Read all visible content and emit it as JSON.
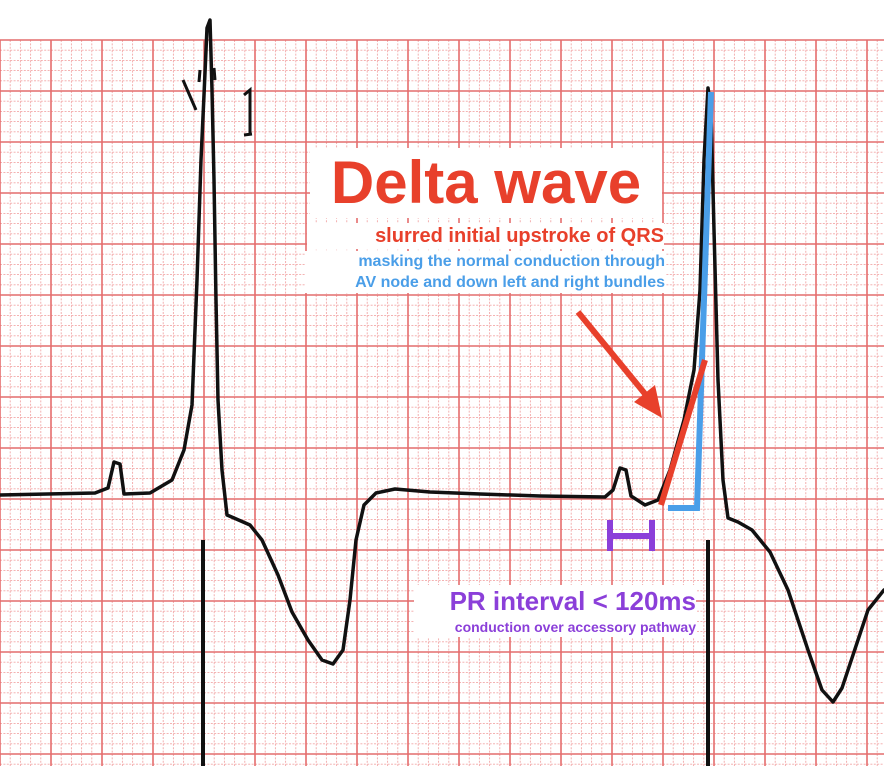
{
  "delta_label": {
    "title": "Delta wave",
    "subtitle": "slurred initial upstroke of QRS",
    "note_line1": "masking the normal conduction through",
    "note_line2": "AV node and down left and right bundles"
  },
  "pr_label": {
    "title": "PR interval < 120ms",
    "subtitle": "conduction over accessory pathway"
  },
  "colors": {
    "grid_minor": "#f2a8a8",
    "grid_major": "#e46d6d",
    "trace": "#111111",
    "delta": "#e8402b",
    "normal_conduction": "#4a9ee8",
    "pr_interval": "#8b3fd9",
    "arrow": "#e8402b"
  },
  "lead_marker": "calibration-mark"
}
